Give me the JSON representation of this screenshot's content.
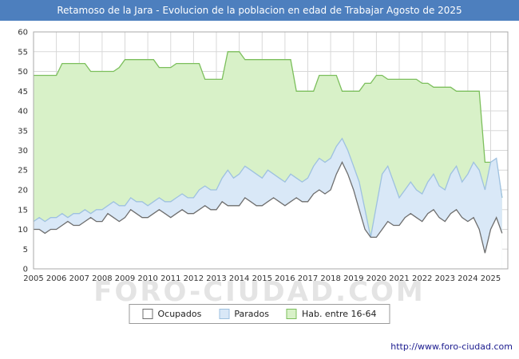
{
  "title": "Retamoso de la Jara - Evolucion de la poblacion en edad de Trabajar Agosto de 2025",
  "watermark": "FORO-CIUDAD.COM",
  "footer_url": "http://www.foro-ciudad.com",
  "legend": [
    "Ocupados",
    "Parados",
    "Hab. entre 16-64"
  ],
  "colors": {
    "title_bar": "#4d7fbe",
    "grid": "#d8d8d8",
    "axis": "#aaaaaa",
    "tick_text": "#333333",
    "watermark": "#e4e4e4",
    "url_text": "#1a1a8e"
  },
  "chart_data": {
    "type": "area",
    "title": "Retamoso de la Jara - Evolucion de la poblacion en edad de Trabajar Agosto de 2025",
    "xlabel": "",
    "ylabel": "",
    "ylim": [
      0,
      60
    ],
    "y_ticks": [
      0,
      5,
      10,
      15,
      20,
      25,
      30,
      35,
      40,
      45,
      50,
      55,
      60
    ],
    "x_start_year": 2005,
    "points_per_year": 4,
    "x_tick_labels": [
      "2005",
      "2006",
      "2007",
      "2008",
      "2009",
      "2010",
      "2011",
      "2012",
      "2013",
      "2014",
      "2015",
      "2016",
      "2017",
      "2018",
      "2019",
      "2020",
      "2021",
      "2022",
      "2023",
      "2024",
      "2025"
    ],
    "grid": true,
    "legend_position": "bottom",
    "series": [
      {
        "name": "Hab. entre 16-64",
        "fill": "#d8f1c8",
        "line": "#7cbf5c",
        "values": [
          49,
          49,
          49,
          49,
          49,
          52,
          52,
          52,
          52,
          52,
          50,
          50,
          50,
          50,
          50,
          51,
          53,
          53,
          53,
          53,
          53,
          53,
          51,
          51,
          51,
          52,
          52,
          52,
          52,
          52,
          48,
          48,
          48,
          48,
          55,
          55,
          55,
          53,
          53,
          53,
          53,
          53,
          53,
          53,
          53,
          53,
          45,
          45,
          45,
          45,
          49,
          49,
          49,
          49,
          45,
          45,
          45,
          45,
          47,
          47,
          49,
          49,
          48,
          48,
          48,
          48,
          48,
          48,
          47,
          47,
          46,
          46,
          46,
          46,
          45,
          45,
          45,
          45,
          45,
          27,
          27,
          27,
          18
        ]
      },
      {
        "name": "Parados",
        "fill": "#d9e8f7",
        "line": "#9ec1e0",
        "values": [
          12,
          13,
          12,
          13,
          13,
          14,
          13,
          14,
          14,
          15,
          14,
          15,
          15,
          16,
          17,
          16,
          16,
          18,
          17,
          17,
          16,
          17,
          18,
          17,
          17,
          18,
          19,
          18,
          18,
          20,
          21,
          20,
          20,
          23,
          25,
          23,
          24,
          26,
          25,
          24,
          23,
          25,
          24,
          23,
          22,
          24,
          23,
          22,
          23,
          26,
          28,
          27,
          28,
          31,
          33,
          30,
          26,
          22,
          15,
          8,
          16,
          24,
          26,
          22,
          18,
          20,
          22,
          20,
          19,
          22,
          24,
          21,
          20,
          24,
          26,
          22,
          24,
          27,
          25,
          20,
          27,
          28,
          18
        ]
      },
      {
        "name": "Ocupados",
        "fill": "#ffffff",
        "line": "#6e6e6e",
        "values": [
          10,
          10,
          9,
          10,
          10,
          11,
          12,
          11,
          11,
          12,
          13,
          12,
          12,
          14,
          13,
          12,
          13,
          15,
          14,
          13,
          13,
          14,
          15,
          14,
          13,
          14,
          15,
          14,
          14,
          15,
          16,
          15,
          15,
          17,
          16,
          16,
          16,
          18,
          17,
          16,
          16,
          17,
          18,
          17,
          16,
          17,
          18,
          17,
          17,
          19,
          20,
          19,
          20,
          24,
          27,
          24,
          20,
          15,
          10,
          8,
          8,
          10,
          12,
          11,
          11,
          13,
          14,
          13,
          12,
          14,
          15,
          13,
          12,
          14,
          15,
          13,
          12,
          13,
          10,
          4,
          10,
          13,
          9
        ]
      }
    ]
  }
}
